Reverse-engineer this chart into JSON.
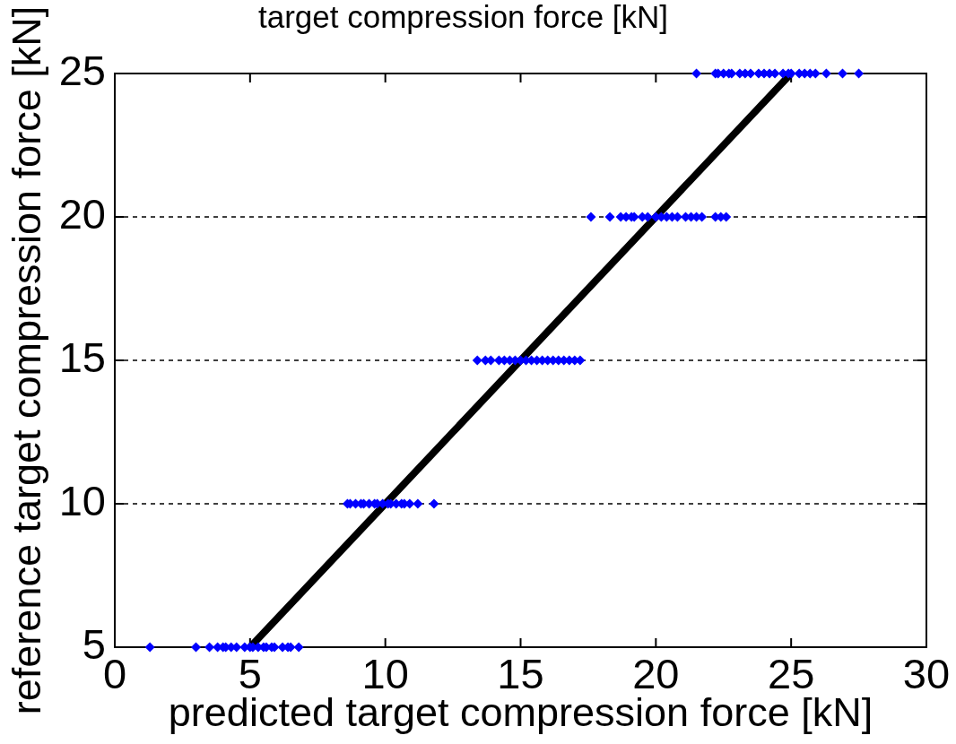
{
  "chart_data": {
    "type": "scatter",
    "title": "target compression force [kN]",
    "xlabel": "predicted target compression force [kN]",
    "ylabel": "reference target compression force [kN]",
    "xlim": [
      0,
      30
    ],
    "xticks": [
      0,
      5,
      10,
      15,
      20,
      25,
      30
    ],
    "ylim": [
      5,
      25
    ],
    "yticks": [
      5,
      10,
      15,
      20,
      25
    ],
    "grid": "y",
    "series": [
      {
        "color": "#0000ff",
        "marker": "diamond",
        "x": [
          1.3,
          3.0,
          3.5,
          3.8,
          4.0,
          4.1,
          4.3,
          4.5,
          4.8,
          5.0,
          5.1,
          5.3,
          5.5,
          5.6,
          5.8,
          5.9,
          6.2,
          6.4,
          6.5,
          6.8,
          8.6,
          8.7,
          8.9,
          9.1,
          9.2,
          9.4,
          9.6,
          9.7,
          9.9,
          10.1,
          10.2,
          10.4,
          10.6,
          10.7,
          10.9,
          11.2,
          11.8,
          13.4,
          13.7,
          13.9,
          14.2,
          14.4,
          14.6,
          14.8,
          15.0,
          15.2,
          15.4,
          15.6,
          15.8,
          16.0,
          16.2,
          16.4,
          16.6,
          16.8,
          17.0,
          17.2,
          17.6,
          18.3,
          18.7,
          18.9,
          19.1,
          19.2,
          19.5,
          19.7,
          20.0,
          20.2,
          20.4,
          20.6,
          20.8,
          21.1,
          21.3,
          21.5,
          21.7,
          22.2,
          22.4,
          22.6,
          21.5,
          22.2,
          22.3,
          22.5,
          22.7,
          22.8,
          23.1,
          23.3,
          23.5,
          23.8,
          24.0,
          24.2,
          24.4,
          24.7,
          24.9,
          25.0,
          25.3,
          25.5,
          25.7,
          25.9,
          26.3,
          26.9,
          27.5
        ],
        "values": [
          5,
          5,
          5,
          5,
          5,
          5,
          5,
          5,
          5,
          5,
          5,
          5,
          5,
          5,
          5,
          5,
          5,
          5,
          5,
          5,
          10,
          10,
          10,
          10,
          10,
          10,
          10,
          10,
          10,
          10,
          10,
          10,
          10,
          10,
          10,
          10,
          10,
          15,
          15,
          15,
          15,
          15,
          15,
          15,
          15,
          15,
          15,
          15,
          15,
          15,
          15,
          15,
          15,
          15,
          15,
          15,
          20,
          20,
          20,
          20,
          20,
          20,
          20,
          20,
          20,
          20,
          20,
          20,
          20,
          20,
          20,
          20,
          20,
          20,
          20,
          20,
          25,
          25,
          25,
          25,
          25,
          25,
          25,
          25,
          25,
          25,
          25,
          25,
          25,
          25,
          25,
          25,
          25,
          25,
          25,
          25,
          25,
          25,
          25
        ]
      },
      {
        "type": "line",
        "color": "#000000",
        "marker": "none",
        "x": [
          5,
          25
        ],
        "values": [
          5,
          25
        ]
      }
    ]
  }
}
